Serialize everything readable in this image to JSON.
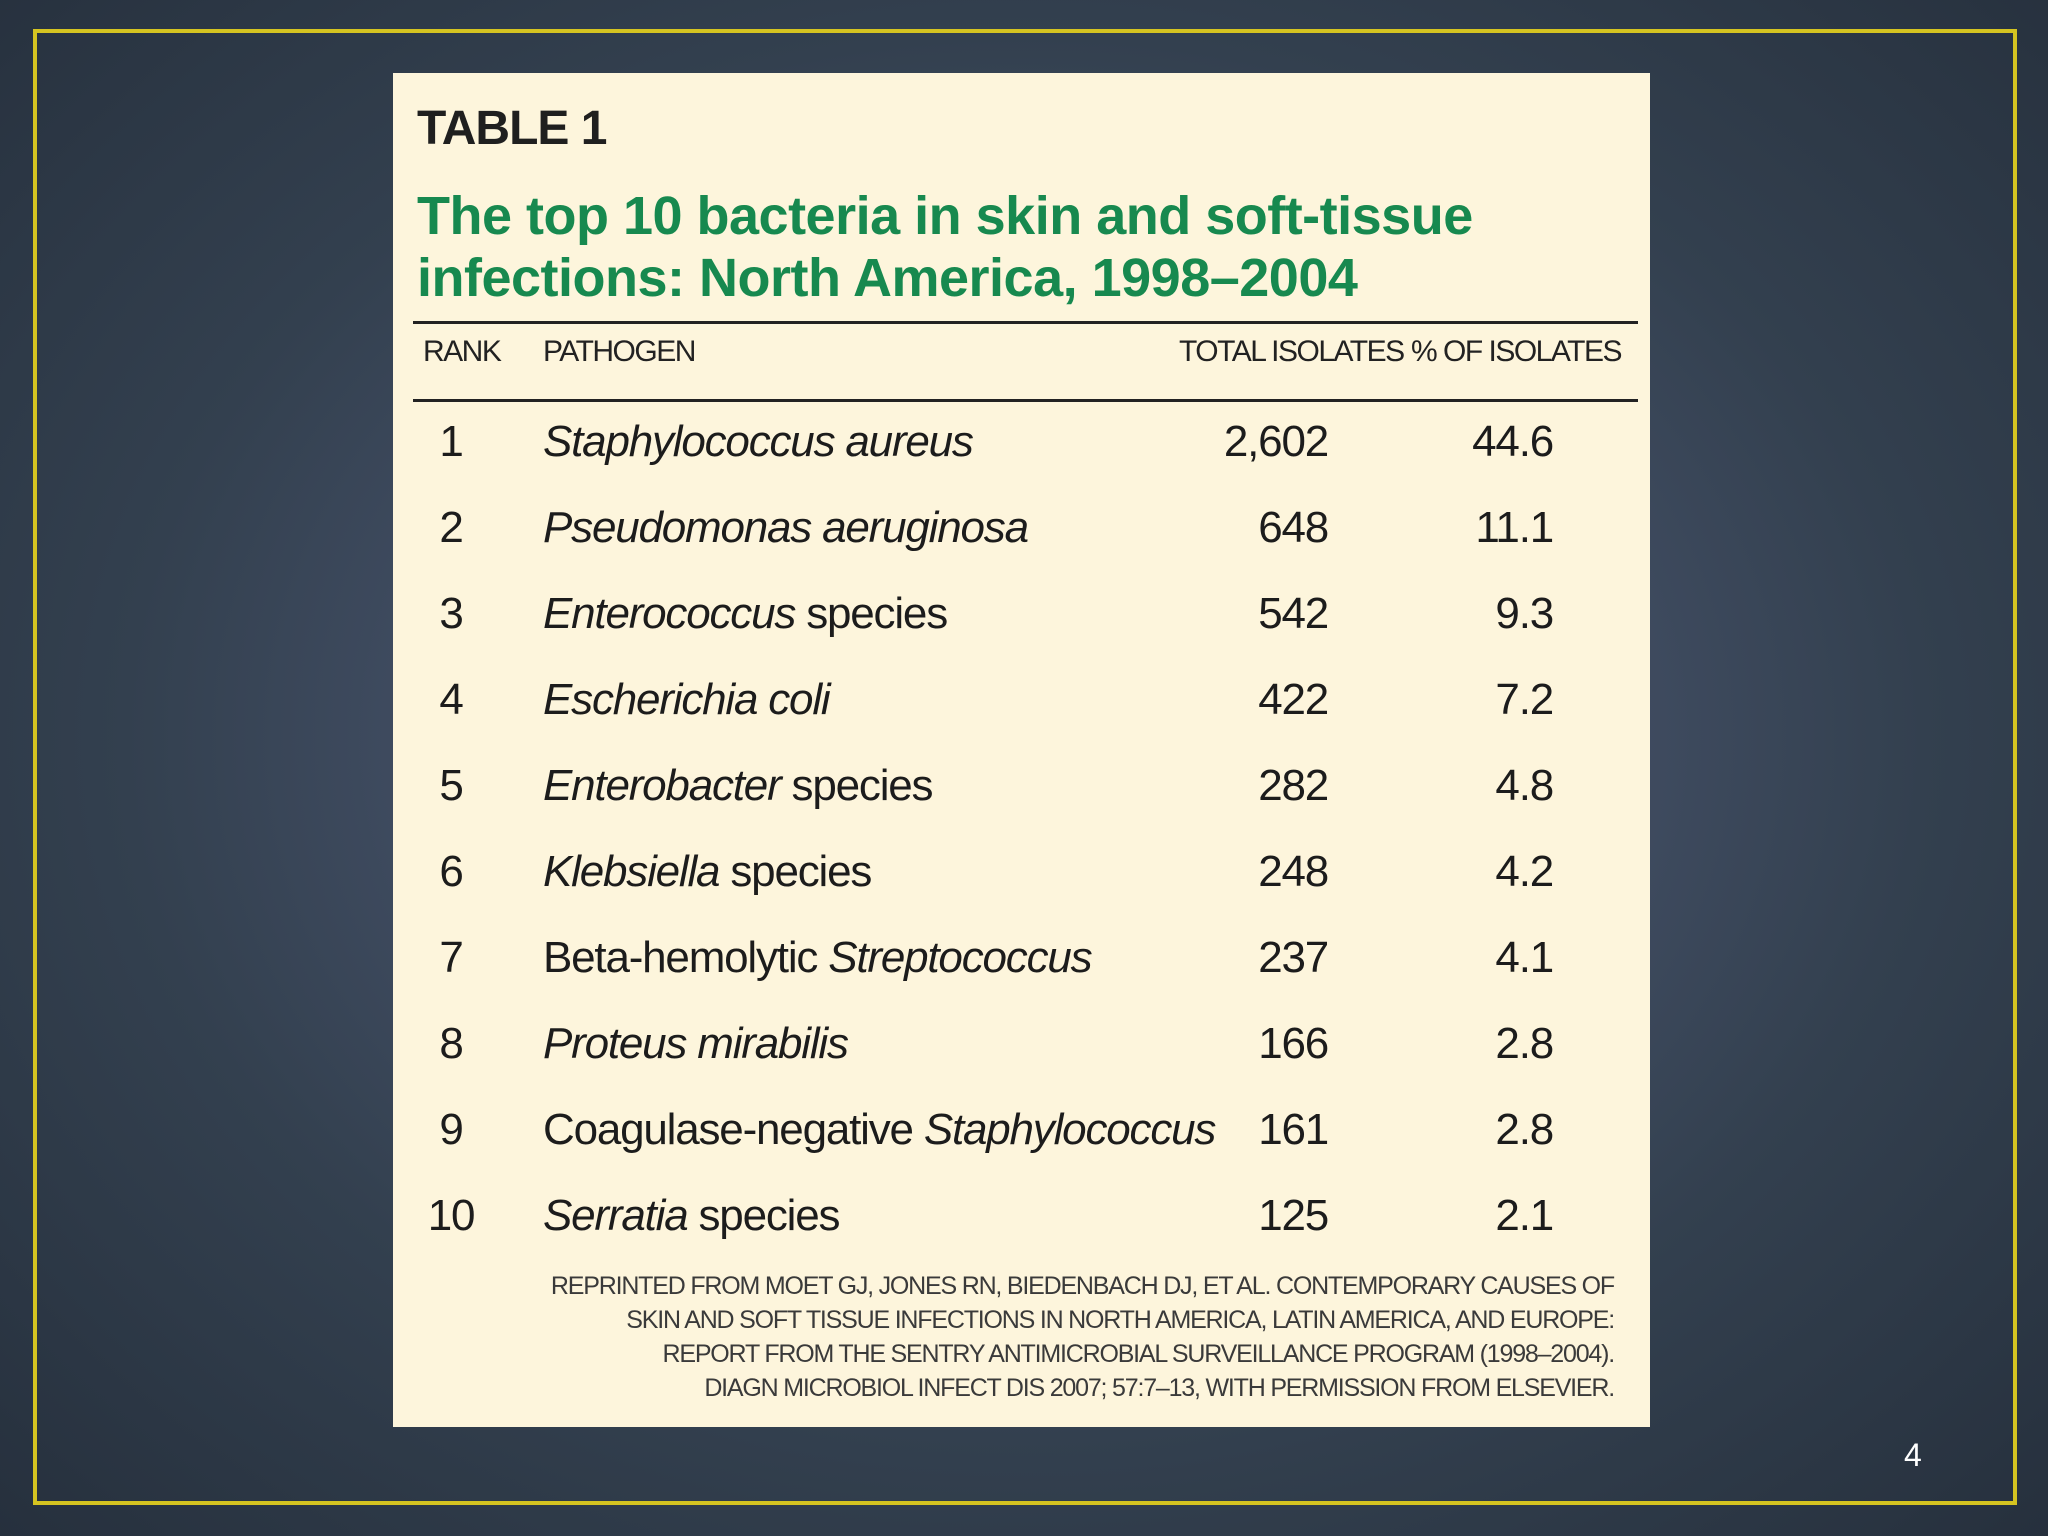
{
  "slide": {
    "page_number": "4"
  },
  "table": {
    "label": "TABLE 1",
    "title_line1": "The top 10 bacteria in skin and soft-tissue",
    "title_line2": "infections: North America, 1998–2004",
    "headers": {
      "rank": "RANK",
      "pathogen": "PATHOGEN",
      "total": "TOTAL ISOLATES",
      "pct": "% OF ISOLATES"
    },
    "rows": [
      {
        "rank": "1",
        "italic": "Staphylococcus aureus",
        "plain": "",
        "plain_first": false,
        "total": "2,602",
        "pct": "44.6"
      },
      {
        "rank": "2",
        "italic": "Pseudomonas aeruginosa",
        "plain": "",
        "plain_first": false,
        "total": "648",
        "pct": "11.1"
      },
      {
        "rank": "3",
        "italic": "Enterococcus",
        "plain": " species",
        "plain_first": false,
        "total": "542",
        "pct": "9.3"
      },
      {
        "rank": "4",
        "italic": "Escherichia coli",
        "plain": "",
        "plain_first": false,
        "total": "422",
        "pct": "7.2"
      },
      {
        "rank": "5",
        "italic": "Enterobacter",
        "plain": " species",
        "plain_first": false,
        "total": "282",
        "pct": "4.8"
      },
      {
        "rank": "6",
        "italic": "Klebsiella",
        "plain": " species",
        "plain_first": false,
        "total": "248",
        "pct": "4.2"
      },
      {
        "rank": "7",
        "italic": "Streptococcus",
        "plain": "Beta-hemolytic ",
        "plain_first": true,
        "total": "237",
        "pct": "4.1"
      },
      {
        "rank": "8",
        "italic": "Proteus mirabilis",
        "plain": "",
        "plain_first": false,
        "total": "166",
        "pct": "2.8"
      },
      {
        "rank": "9",
        "italic": "Staphylococcus",
        "plain": "Coagulase-negative ",
        "plain_first": true,
        "total": "161",
        "pct": "2.8"
      },
      {
        "rank": "10",
        "italic": "Serratia",
        "plain": " species",
        "plain_first": false,
        "total": "125",
        "pct": "2.1"
      }
    ],
    "footnote": [
      "Reprinted from Moet GJ, Jones RN, Biedenbach DJ, et al. Contemporary causes of",
      "skin and soft tissue infections in North America, Latin America, and Europe:",
      "report from the SENTRY Antimicrobial Surveillance Program (1998–2004).",
      "Diagn Microbiol Infect Dis 2007; 57:7–13, with permission from Elsevier."
    ]
  }
}
